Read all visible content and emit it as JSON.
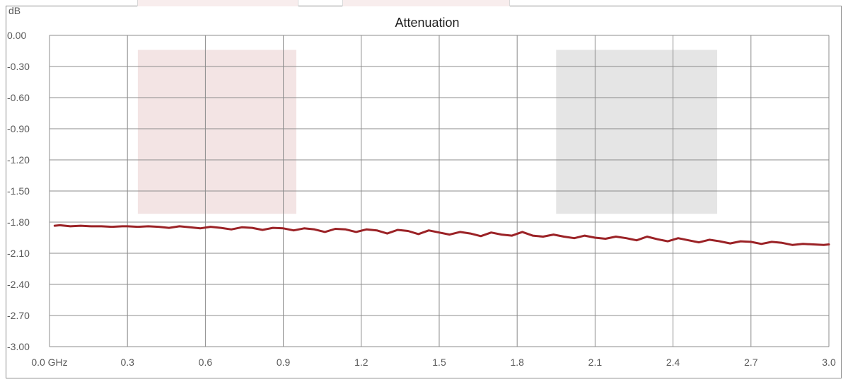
{
  "colors": {
    "line": "#9b2226",
    "grid": "#8c8c8c",
    "band_left": "#f3e4e4",
    "band_right": "#e5e5e5"
  },
  "chart_data": {
    "type": "line",
    "title": "Attenuation",
    "ylabel": "dB",
    "xunit": "GHz",
    "xlim": [
      0.0,
      3.0
    ],
    "ylim": [
      -3.0,
      0.0
    ],
    "grid": true,
    "x_ticks": [
      "0.0 GHz",
      "0.3",
      "0.6",
      "0.9",
      "1.2",
      "1.5",
      "1.8",
      "2.1",
      "2.4",
      "2.7",
      "3.0"
    ],
    "y_ticks": [
      "0.00",
      "-0.30",
      "-0.60",
      "-0.90",
      "-1.20",
      "-1.50",
      "-1.80",
      "-2.10",
      "-2.40",
      "-2.70",
      "-3.00"
    ],
    "bands": [
      {
        "x": [
          0.34,
          0.95
        ],
        "y": [
          -1.72,
          -0.14
        ],
        "color": "#f3e4e4"
      },
      {
        "x": [
          1.95,
          2.57
        ],
        "y": [
          -1.72,
          -0.14
        ],
        "color": "#e5e5e5"
      }
    ],
    "series": [
      {
        "x": [
          0.02,
          0.04,
          0.08,
          0.12,
          0.16,
          0.2,
          0.24,
          0.28,
          0.3,
          0.34,
          0.38,
          0.42,
          0.46,
          0.5,
          0.54,
          0.58,
          0.62,
          0.66,
          0.7,
          0.74,
          0.78,
          0.82,
          0.86,
          0.9,
          0.94,
          0.98,
          1.02,
          1.06,
          1.1,
          1.14,
          1.18,
          1.22,
          1.26,
          1.3,
          1.34,
          1.38,
          1.42,
          1.46,
          1.5,
          1.54,
          1.58,
          1.62,
          1.66,
          1.7,
          1.74,
          1.78,
          1.82,
          1.86,
          1.9,
          1.94,
          1.98,
          2.02,
          2.06,
          2.1,
          2.14,
          2.18,
          2.22,
          2.26,
          2.3,
          2.34,
          2.38,
          2.42,
          2.46,
          2.5,
          2.54,
          2.58,
          2.62,
          2.66,
          2.7,
          2.74,
          2.78,
          2.82,
          2.86,
          2.9,
          2.94,
          2.98,
          3.0
        ],
        "values": [
          -1.835,
          -1.83,
          -1.84,
          -1.835,
          -1.84,
          -1.84,
          -1.845,
          -1.84,
          -1.84,
          -1.845,
          -1.84,
          -1.845,
          -1.855,
          -1.84,
          -1.85,
          -1.86,
          -1.845,
          -1.855,
          -1.87,
          -1.85,
          -1.855,
          -1.875,
          -1.855,
          -1.86,
          -1.88,
          -1.86,
          -1.87,
          -1.895,
          -1.865,
          -1.87,
          -1.895,
          -1.87,
          -1.88,
          -1.91,
          -1.875,
          -1.885,
          -1.915,
          -1.88,
          -1.9,
          -1.92,
          -1.895,
          -1.91,
          -1.935,
          -1.9,
          -1.92,
          -1.93,
          -1.895,
          -1.93,
          -1.94,
          -1.92,
          -1.94,
          -1.955,
          -1.93,
          -1.95,
          -1.96,
          -1.94,
          -1.955,
          -1.975,
          -1.94,
          -1.965,
          -1.985,
          -1.955,
          -1.975,
          -1.995,
          -1.97,
          -1.985,
          -2.005,
          -1.985,
          -1.99,
          -2.01,
          -1.99,
          -2.0,
          -2.02,
          -2.01,
          -2.015,
          -2.02,
          -2.015
        ]
      }
    ]
  }
}
